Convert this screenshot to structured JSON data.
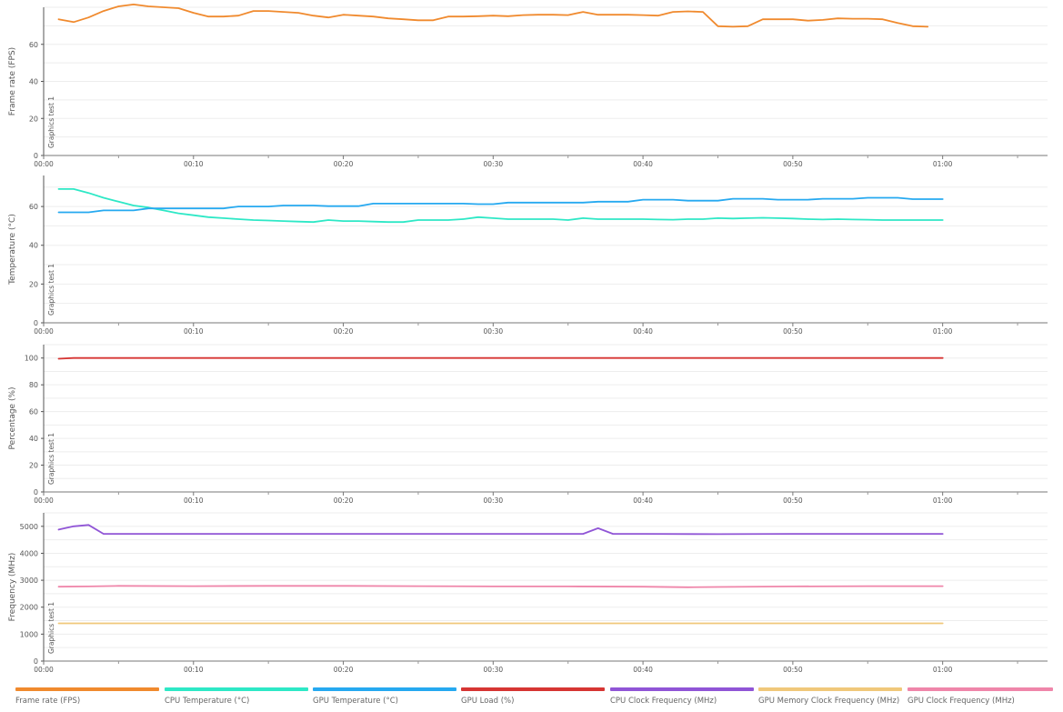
{
  "chart_data": [
    {
      "type": "line",
      "ylabel": "Frame rate (FPS)",
      "ylim": [
        0,
        80
      ],
      "yticks": [
        0,
        20,
        40,
        60
      ],
      "xlim": [
        0,
        67
      ],
      "xticks": [
        "00:00",
        "00:10",
        "00:20",
        "00:30",
        "00:40",
        "00:50",
        "01:00"
      ],
      "marker_label": "Graphics test 1",
      "grid": true,
      "series": [
        {
          "name": "Frame rate (FPS)",
          "color": "#f08a2e",
          "x": [
            1,
            2,
            3,
            4,
            5,
            6,
            7,
            8,
            9,
            10,
            11,
            12,
            13,
            14,
            15,
            16,
            17,
            18,
            19,
            20,
            21,
            22,
            23,
            24,
            25,
            26,
            27,
            28,
            29,
            30,
            31,
            32,
            33,
            34,
            35,
            36,
            37,
            38,
            39,
            40,
            41,
            42,
            43,
            44,
            45,
            46,
            47,
            48,
            49,
            50,
            51,
            52,
            53,
            54,
            55,
            56,
            57,
            58,
            59
          ],
          "values": [
            73.5,
            72,
            74.5,
            78,
            80.5,
            81.5,
            80.5,
            80,
            79.5,
            77,
            75,
            75,
            75.5,
            78,
            78,
            77.5,
            77,
            75.5,
            74.5,
            76,
            75.5,
            75,
            74,
            73.5,
            73,
            73,
            75,
            75,
            75.2,
            75.5,
            75.2,
            75.8,
            76,
            76,
            75.8,
            77.5,
            76,
            76,
            76,
            75.8,
            75.5,
            77.5,
            77.8,
            77.5,
            69.8,
            69.5,
            69.8,
            73.5,
            73.5,
            73.5,
            72.8,
            73.2,
            74,
            73.8,
            73.8,
            73.5,
            71.5,
            69.8,
            69.5
          ]
        }
      ]
    },
    {
      "type": "line",
      "ylabel": "Temperature (°C)",
      "ylim": [
        0,
        76
      ],
      "yticks": [
        0,
        20,
        40,
        60
      ],
      "xlim": [
        0,
        67
      ],
      "xticks": [
        "00:00",
        "00:10",
        "00:20",
        "00:30",
        "00:40",
        "00:50",
        "01:00"
      ],
      "marker_label": "Graphics test 1",
      "grid": true,
      "series": [
        {
          "name": "CPU Temperature (°C)",
          "color": "#2ee8c6",
          "x": [
            1,
            2,
            3,
            4,
            5,
            6,
            7,
            8,
            9,
            10,
            11,
            12,
            13,
            14,
            15,
            16,
            17,
            18,
            19,
            20,
            21,
            22,
            23,
            24,
            25,
            26,
            27,
            28,
            29,
            30,
            31,
            32,
            33,
            34,
            35,
            36,
            37,
            38,
            39,
            40,
            41,
            42,
            43,
            44,
            45,
            46,
            47,
            48,
            49,
            50,
            51,
            52,
            53,
            54,
            55,
            56,
            57,
            58,
            59,
            60
          ],
          "values": [
            69,
            69,
            67,
            64.5,
            62.5,
            60.5,
            59.5,
            58,
            56.5,
            55.5,
            54.5,
            54,
            53.5,
            53,
            52.8,
            52.5,
            52.2,
            52,
            53,
            52.5,
            52.5,
            52.2,
            52,
            52,
            53,
            53,
            53,
            53.5,
            54.5,
            54,
            53.5,
            53.5,
            53.5,
            53.5,
            53,
            54,
            53.5,
            53.5,
            53.5,
            53.5,
            53.3,
            53.2,
            53.5,
            53.5,
            54,
            53.8,
            54,
            54.2,
            54,
            53.8,
            53.5,
            53.3,
            53.5,
            53.3,
            53.2,
            53,
            53,
            53,
            53,
            53
          ]
        },
        {
          "name": "GPU Temperature (°C)",
          "color": "#26a9f0",
          "x": [
            1,
            2,
            3,
            4,
            5,
            6,
            7,
            8,
            9,
            10,
            11,
            12,
            13,
            14,
            15,
            16,
            17,
            18,
            19,
            20,
            21,
            22,
            23,
            24,
            25,
            26,
            27,
            28,
            29,
            30,
            31,
            32,
            33,
            34,
            35,
            36,
            37,
            38,
            39,
            40,
            41,
            42,
            43,
            44,
            45,
            46,
            47,
            48,
            49,
            50,
            51,
            52,
            53,
            54,
            55,
            56,
            57,
            58,
            59,
            60
          ],
          "values": [
            57,
            57,
            57,
            58,
            58,
            58,
            59,
            59,
            59,
            59,
            59,
            59,
            60,
            60,
            60,
            60.5,
            60.5,
            60.5,
            60.2,
            60.2,
            60.2,
            61.5,
            61.5,
            61.5,
            61.5,
            61.5,
            61.5,
            61.5,
            61.2,
            61.2,
            62,
            62,
            62,
            62,
            62,
            62,
            62.5,
            62.5,
            62.5,
            63.5,
            63.5,
            63.5,
            63,
            63,
            63,
            64,
            64,
            64,
            63.5,
            63.5,
            63.5,
            64,
            64,
            64,
            64.5,
            64.5,
            64.5,
            63.8,
            63.8,
            63.8
          ]
        }
      ]
    },
    {
      "type": "line",
      "ylabel": "Percentage (%)",
      "ylim": [
        0,
        110
      ],
      "yticks": [
        0,
        20,
        40,
        60,
        80,
        100
      ],
      "xlim": [
        0,
        67
      ],
      "xticks": [
        "00:00",
        "00:10",
        "00:20",
        "00:30",
        "00:40",
        "00:50",
        "01:00"
      ],
      "marker_label": "Graphics test 1",
      "grid": true,
      "series": [
        {
          "name": "GPU Load (%)",
          "color": "#d63533",
          "x": [
            1,
            2,
            3,
            10,
            20,
            30,
            40,
            50,
            60
          ],
          "values": [
            99.5,
            100,
            100,
            100,
            100,
            100,
            100,
            100,
            100
          ]
        }
      ]
    },
    {
      "type": "line",
      "ylabel": "Frequency (MHz)",
      "ylim": [
        0,
        5500
      ],
      "yticks": [
        0,
        1000,
        2000,
        3000,
        4000,
        5000
      ],
      "xlim": [
        0,
        67
      ],
      "xticks": [
        "00:00",
        "00:10",
        "00:20",
        "00:30",
        "00:40",
        "00:50",
        "01:00"
      ],
      "marker_label": "Graphics test 1",
      "grid": true,
      "series": [
        {
          "name": "CPU Clock Frequency (MHz)",
          "color": "#9055d6",
          "x": [
            1,
            2,
            3,
            4,
            5,
            10,
            20,
            30,
            35,
            36,
            37,
            38,
            39,
            40,
            45,
            50,
            55,
            60
          ],
          "values": [
            4880,
            5000,
            5050,
            4720,
            4720,
            4720,
            4720,
            4720,
            4720,
            4720,
            4930,
            4720,
            4720,
            4720,
            4710,
            4720,
            4720,
            4720
          ]
        },
        {
          "name": "GPU Memory Clock Frequency (MHz)",
          "color": "#f0c87a",
          "x": [
            1,
            10,
            20,
            30,
            40,
            50,
            60
          ],
          "values": [
            1400,
            1400,
            1400,
            1400,
            1400,
            1400,
            1400
          ]
        },
        {
          "name": "GPU Clock Frequency (MHz)",
          "color": "#ef86aa",
          "x": [
            1,
            3,
            5,
            10,
            15,
            20,
            25,
            30,
            35,
            40,
            43,
            45,
            50,
            55,
            60
          ],
          "values": [
            2760,
            2770,
            2790,
            2780,
            2790,
            2790,
            2780,
            2770,
            2770,
            2760,
            2740,
            2750,
            2770,
            2780,
            2780
          ]
        }
      ]
    }
  ],
  "legend": [
    {
      "label": "Frame rate (FPS)",
      "color": "#f08a2e"
    },
    {
      "label": "CPU Temperature (°C)",
      "color": "#2ee8c6"
    },
    {
      "label": "GPU Temperature (°C)",
      "color": "#26a9f0"
    },
    {
      "label": "GPU Load (%)",
      "color": "#d63533"
    },
    {
      "label": "CPU Clock Frequency (MHz)",
      "color": "#9055d6"
    },
    {
      "label": "GPU Memory Clock Frequency (MHz)",
      "color": "#f0c87a"
    },
    {
      "label": "GPU Clock Frequency (MHz)",
      "color": "#ef86aa"
    }
  ]
}
